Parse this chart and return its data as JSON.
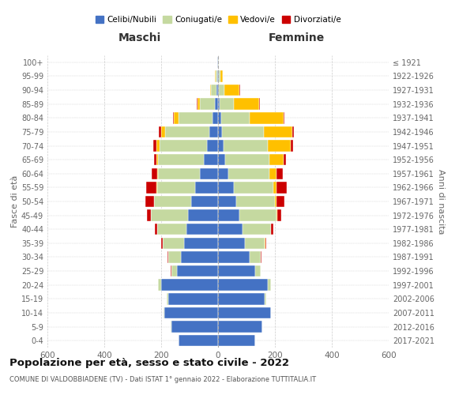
{
  "age_groups": [
    "0-4",
    "5-9",
    "10-14",
    "15-19",
    "20-24",
    "25-29",
    "30-34",
    "35-39",
    "40-44",
    "45-49",
    "50-54",
    "55-59",
    "60-64",
    "65-69",
    "70-74",
    "75-79",
    "80-84",
    "85-89",
    "90-94",
    "95-99",
    "100+"
  ],
  "birth_years": [
    "2017-2021",
    "2012-2016",
    "2007-2011",
    "2002-2006",
    "1997-2001",
    "1992-1996",
    "1987-1991",
    "1982-1986",
    "1977-1981",
    "1972-1976",
    "1967-1971",
    "1962-1966",
    "1957-1961",
    "1952-1956",
    "1947-1951",
    "1942-1946",
    "1937-1941",
    "1932-1936",
    "1927-1931",
    "1922-1926",
    "≤ 1921"
  ],
  "maschi": {
    "celibi": [
      140,
      165,
      190,
      175,
      200,
      145,
      130,
      120,
      110,
      105,
      95,
      80,
      65,
      50,
      40,
      30,
      20,
      10,
      5,
      4,
      2
    ],
    "coniugati": [
      0,
      1,
      2,
      5,
      10,
      20,
      45,
      75,
      105,
      130,
      130,
      135,
      145,
      160,
      165,
      155,
      120,
      55,
      20,
      5,
      1
    ],
    "vedovi": [
      0,
      0,
      0,
      0,
      2,
      0,
      0,
      0,
      0,
      0,
      1,
      2,
      5,
      8,
      12,
      15,
      15,
      8,
      3,
      1,
      0
    ],
    "divorziati": [
      0,
      0,
      0,
      0,
      0,
      1,
      2,
      5,
      8,
      15,
      30,
      35,
      18,
      8,
      10,
      8,
      3,
      2,
      0,
      0,
      0
    ]
  },
  "femmine": {
    "nubili": [
      130,
      155,
      185,
      165,
      175,
      130,
      110,
      95,
      85,
      75,
      65,
      55,
      35,
      25,
      20,
      15,
      10,
      5,
      3,
      2,
      1
    ],
    "coniugate": [
      0,
      1,
      2,
      5,
      10,
      20,
      40,
      70,
      100,
      130,
      135,
      140,
      145,
      155,
      155,
      145,
      100,
      50,
      18,
      5,
      1
    ],
    "vedove": [
      0,
      0,
      0,
      0,
      0,
      0,
      0,
      1,
      1,
      3,
      5,
      10,
      25,
      50,
      80,
      100,
      120,
      90,
      55,
      10,
      1
    ],
    "divorziate": [
      0,
      0,
      0,
      0,
      0,
      1,
      2,
      4,
      8,
      15,
      28,
      38,
      22,
      10,
      10,
      8,
      4,
      3,
      1,
      0,
      0
    ]
  },
  "colors": {
    "celibi": "#4472c4",
    "coniugati": "#c5d9a0",
    "vedovi": "#ffc000",
    "divorziati": "#cc0000"
  },
  "legend_labels": [
    "Celibi/Nubili",
    "Coniugati/e",
    "Vedovi/e",
    "Divorziati/e"
  ],
  "title": "Popolazione per età, sesso e stato civile - 2022",
  "subtitle": "COMUNE DI VALDOBBIADENE (TV) - Dati ISTAT 1° gennaio 2022 - Elaborazione TUTTITALIA.IT",
  "xlabel_left": "Maschi",
  "xlabel_right": "Femmine",
  "ylabel_left": "Fasce di età",
  "ylabel_right": "Anni di nascita",
  "xlim": 600,
  "bg_color": "#ffffff",
  "grid_color": "#cccccc"
}
